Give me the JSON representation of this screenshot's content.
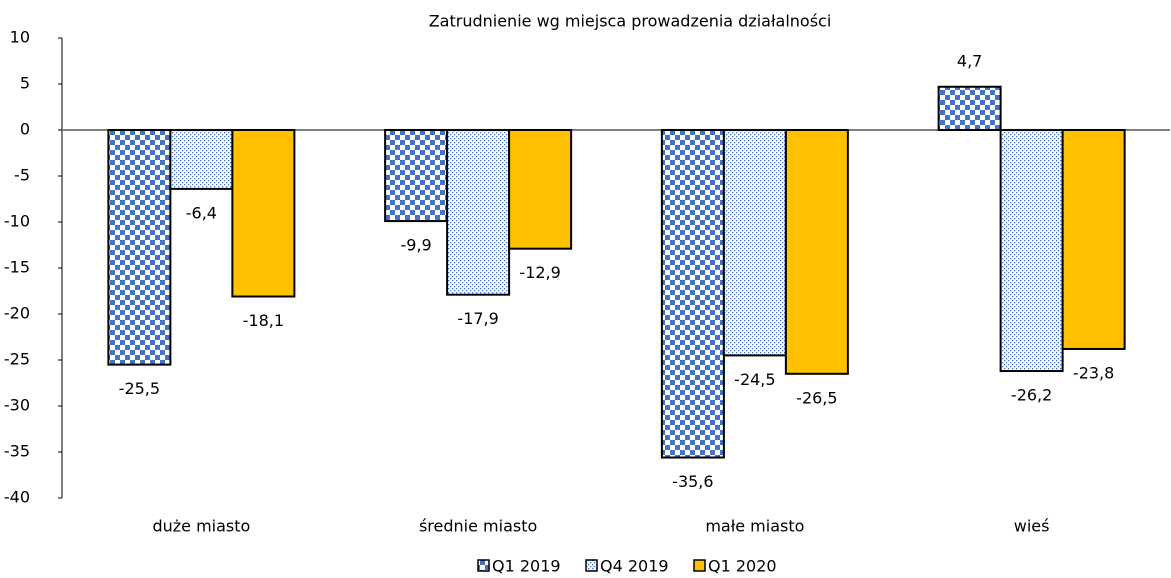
{
  "chart_data": {
    "type": "bar",
    "title": "Zatrudnienie wg miejsca prowadzenia działalności",
    "categories": [
      "duże miasto",
      "średnie miasto",
      "małe miasto",
      "wieś"
    ],
    "series": [
      {
        "name": "Q1 2019",
        "color": "#4472c4",
        "pattern": "checker",
        "values": [
          -25.5,
          -9.9,
          -35.6,
          4.7
        ],
        "value_labels": [
          "-25,5",
          "-9,9",
          "-35,6",
          "4,7"
        ]
      },
      {
        "name": "Q4 2019",
        "color": "#4472c4",
        "pattern": "dots",
        "values": [
          -6.4,
          -17.9,
          -24.5,
          -26.2
        ],
        "value_labels": [
          "-6,4",
          "-17,9",
          "-24,5",
          "-26,2"
        ]
      },
      {
        "name": "Q1 2020",
        "color": "#ffc000",
        "pattern": "solid",
        "values": [
          -18.1,
          -12.9,
          -26.5,
          -23.8
        ],
        "value_labels": [
          "-18,1",
          "-12,9",
          "-26,5",
          "-23,8"
        ]
      }
    ],
    "ylim": [
      -40,
      10
    ],
    "yticks": [
      -40,
      -35,
      -30,
      -25,
      -20,
      -15,
      -10,
      -5,
      0,
      5,
      10
    ],
    "grid": false,
    "legend": "bottom"
  }
}
